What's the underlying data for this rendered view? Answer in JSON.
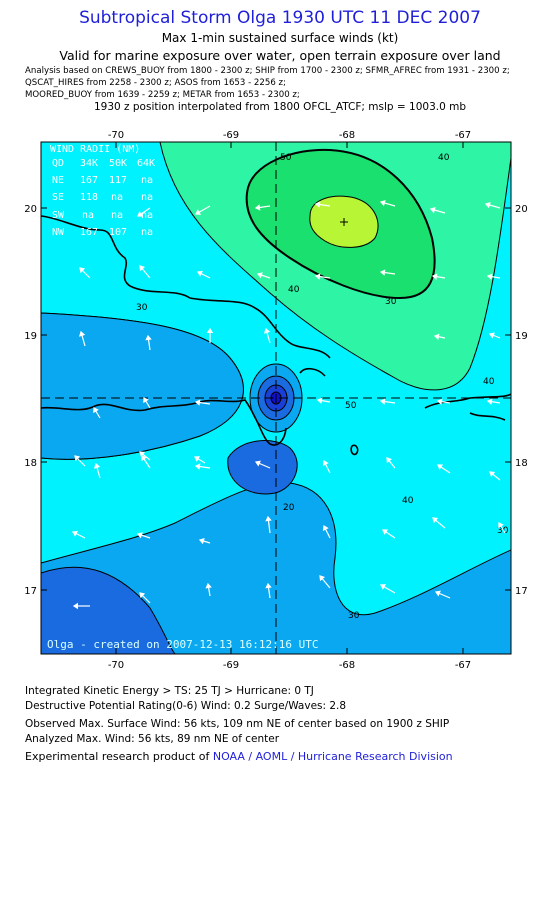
{
  "header": {
    "title": "Subtropical Storm Olga 1930 UTC 11 DEC 2007",
    "subtitle1": "Max 1-min sustained surface winds (kt)",
    "subtitle2": "Valid for marine exposure over water, open terrain exposure over land",
    "analysis_line1": "Analysis based on  CREWS_BUOY from 1800 - 2300 z;  SHIP from 1700 - 2300 z;  SFMR_AFREC from 1931 - 2300 z;",
    "analysis_line2": "QSCAT_HIRES from 2258 - 2300 z;  ASOS from 1653 - 2256 z;",
    "analysis_line3": "MOORED_BUOY from 1639 - 2259 z;  METAR from 1653 - 2300 z;",
    "position_line": "1930 z position interpolated from 1800 OFCL_ATCF; mslp = 1003.0 mb"
  },
  "map": {
    "x_ticks": [
      "-70",
      "-69",
      "-68",
      "-67"
    ],
    "y_ticks": [
      "20",
      "19",
      "18",
      "17"
    ],
    "contour_labels": [
      "50",
      "40",
      "30",
      "40",
      "50",
      "40",
      "30",
      "30",
      "30",
      "20",
      "40"
    ],
    "credit": "Olga - created on 2007-12-13 16:12:16 UTC",
    "storm_center_marker": "storm-center-icon",
    "colors": {
      "ocean_light": "#00f2ff",
      "blue_mid": "#0aa8f0",
      "blue_dark": "#1a6be0",
      "green_light": "#2ef5a6",
      "green": "#19e06e",
      "yellow_green": "#b8f535",
      "title_blue": "#1f1fd9"
    }
  },
  "wind_radii": {
    "title": "WIND RADII (NM)",
    "header": [
      "QD",
      "34K",
      "50K",
      "64K"
    ],
    "rows": [
      [
        "NE",
        "167",
        "117",
        "na"
      ],
      [
        "SE",
        "118",
        "na",
        "na"
      ],
      [
        "SW",
        "na",
        "na",
        "na"
      ],
      [
        "NW",
        "167",
        "107",
        "na"
      ]
    ]
  },
  "footer": {
    "line1": "Integrated Kinetic Energy > TS: 25 TJ   > Hurricane: 0 TJ",
    "line2": "Destructive Potential Rating(0-6)   Wind: 0.2 Surge/Waves: 2.8",
    "line3": "Observed Max. Surface Wind: 56 kts, 109 nm NE of center based on 1900 z SHIP",
    "line4": "Analyzed Max. Wind: 56 kts, 89 nm NE of center",
    "line5_prefix": "Experimental research product of ",
    "line5_link": "NOAA / AOML / Hurricane Research Division"
  }
}
